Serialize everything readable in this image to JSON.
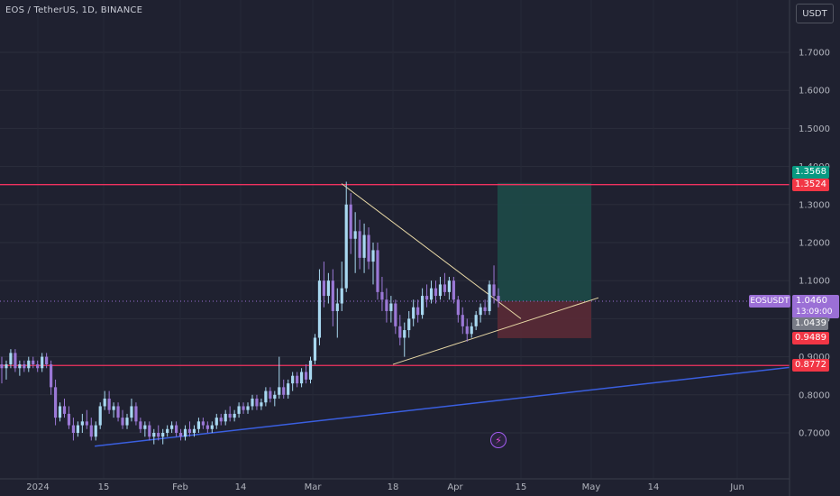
{
  "header": {
    "title": "EOS / TetherUS, 1D, BINANCE",
    "unit": "USDT"
  },
  "colors": {
    "background": "#1f2130",
    "bull": "#a8d8f0",
    "bear": "#9b78d6",
    "resistance": "#f0325f",
    "trend": "#3a5fe0",
    "triangle": "#e9d9a6",
    "profit_zone": "#1d4a48",
    "loss_zone": "#5a2a36",
    "tp_badge": "#089981",
    "sl_badge": "#f23645",
    "price_badge": "#9b6fd6"
  },
  "badges": {
    "tp": "1.3568",
    "resistance": "1.3524",
    "stop": "0.9489",
    "support": "0.8772",
    "symbol": "EOSUSDT",
    "price": "1.0460",
    "countdown": "13:09:00",
    "last": "1.0439"
  },
  "chart_data": {
    "type": "candlestick",
    "ylim": [
      0.62,
      1.84
    ],
    "y_ticks": [
      "0.7000",
      "0.8000",
      "0.9000",
      "1.0000",
      "1.1000",
      "1.2000",
      "1.3000",
      "1.4000",
      "1.5000",
      "1.6000",
      "1.7000"
    ],
    "x_ticks": [
      "2024",
      "15",
      "Feb",
      "14",
      "Mar",
      "18",
      "Apr",
      "15",
      "May",
      "14",
      "Jun"
    ],
    "levels": [
      {
        "price": 1.3524,
        "label": "1.3524"
      },
      {
        "price": 0.8772,
        "label": "0.8772"
      }
    ],
    "trendline": {
      "from": [
        0.12,
        0.665
      ],
      "to": [
        1.0,
        0.872
      ]
    },
    "triangle_upper": {
      "from": [
        0.38,
        1.355
      ],
      "to": [
        0.625,
        1.0
      ]
    },
    "triangle_lower": {
      "from": [
        0.47,
        0.88
      ],
      "to": [
        0.715,
        1.055
      ]
    },
    "position": {
      "entry": 1.046,
      "target": 1.3568,
      "stop": 0.9489
    },
    "candles": [
      [
        0.88,
        0.9,
        0.83,
        0.87
      ],
      [
        0.87,
        0.89,
        0.84,
        0.88
      ],
      [
        0.88,
        0.92,
        0.87,
        0.91
      ],
      [
        0.91,
        0.92,
        0.86,
        0.87
      ],
      [
        0.87,
        0.89,
        0.85,
        0.88
      ],
      [
        0.88,
        0.89,
        0.86,
        0.87
      ],
      [
        0.87,
        0.9,
        0.86,
        0.89
      ],
      [
        0.89,
        0.9,
        0.87,
        0.88
      ],
      [
        0.88,
        0.89,
        0.86,
        0.87
      ],
      [
        0.87,
        0.91,
        0.86,
        0.9
      ],
      [
        0.9,
        0.91,
        0.87,
        0.88
      ],
      [
        0.88,
        0.89,
        0.8,
        0.82
      ],
      [
        0.82,
        0.84,
        0.72,
        0.74
      ],
      [
        0.74,
        0.78,
        0.73,
        0.77
      ],
      [
        0.77,
        0.79,
        0.74,
        0.75
      ],
      [
        0.75,
        0.77,
        0.71,
        0.72
      ],
      [
        0.72,
        0.74,
        0.68,
        0.7
      ],
      [
        0.7,
        0.73,
        0.69,
        0.72
      ],
      [
        0.72,
        0.75,
        0.7,
        0.73
      ],
      [
        0.73,
        0.76,
        0.71,
        0.72
      ],
      [
        0.72,
        0.74,
        0.68,
        0.69
      ],
      [
        0.69,
        0.73,
        0.68,
        0.72
      ],
      [
        0.72,
        0.78,
        0.71,
        0.77
      ],
      [
        0.77,
        0.81,
        0.76,
        0.79
      ],
      [
        0.79,
        0.81,
        0.75,
        0.76
      ],
      [
        0.76,
        0.78,
        0.74,
        0.77
      ],
      [
        0.77,
        0.78,
        0.73,
        0.74
      ],
      [
        0.74,
        0.76,
        0.71,
        0.72
      ],
      [
        0.72,
        0.75,
        0.71,
        0.74
      ],
      [
        0.74,
        0.79,
        0.73,
        0.77
      ],
      [
        0.77,
        0.78,
        0.72,
        0.73
      ],
      [
        0.73,
        0.74,
        0.7,
        0.71
      ],
      [
        0.71,
        0.73,
        0.69,
        0.72
      ],
      [
        0.72,
        0.73,
        0.68,
        0.69
      ],
      [
        0.69,
        0.71,
        0.67,
        0.7
      ],
      [
        0.7,
        0.72,
        0.68,
        0.69
      ],
      [
        0.69,
        0.71,
        0.67,
        0.7
      ],
      [
        0.7,
        0.72,
        0.69,
        0.71
      ],
      [
        0.71,
        0.73,
        0.7,
        0.72
      ],
      [
        0.72,
        0.73,
        0.69,
        0.7
      ],
      [
        0.7,
        0.71,
        0.68,
        0.69
      ],
      [
        0.69,
        0.72,
        0.68,
        0.71
      ],
      [
        0.71,
        0.73,
        0.69,
        0.7
      ],
      [
        0.7,
        0.72,
        0.69,
        0.71
      ],
      [
        0.71,
        0.74,
        0.7,
        0.73
      ],
      [
        0.73,
        0.74,
        0.71,
        0.72
      ],
      [
        0.72,
        0.73,
        0.7,
        0.71
      ],
      [
        0.71,
        0.73,
        0.7,
        0.72
      ],
      [
        0.72,
        0.75,
        0.71,
        0.74
      ],
      [
        0.74,
        0.75,
        0.72,
        0.73
      ],
      [
        0.73,
        0.76,
        0.72,
        0.75
      ],
      [
        0.75,
        0.77,
        0.73,
        0.74
      ],
      [
        0.74,
        0.76,
        0.73,
        0.75
      ],
      [
        0.75,
        0.78,
        0.74,
        0.77
      ],
      [
        0.77,
        0.78,
        0.75,
        0.76
      ],
      [
        0.76,
        0.78,
        0.75,
        0.77
      ],
      [
        0.77,
        0.8,
        0.76,
        0.79
      ],
      [
        0.79,
        0.8,
        0.76,
        0.77
      ],
      [
        0.77,
        0.79,
        0.76,
        0.78
      ],
      [
        0.78,
        0.82,
        0.77,
        0.81
      ],
      [
        0.81,
        0.82,
        0.78,
        0.79
      ],
      [
        0.79,
        0.81,
        0.77,
        0.8
      ],
      [
        0.8,
        0.9,
        0.79,
        0.82
      ],
      [
        0.82,
        0.84,
        0.79,
        0.8
      ],
      [
        0.8,
        0.84,
        0.79,
        0.83
      ],
      [
        0.83,
        0.86,
        0.81,
        0.85
      ],
      [
        0.85,
        0.86,
        0.82,
        0.83
      ],
      [
        0.83,
        0.87,
        0.82,
        0.86
      ],
      [
        0.86,
        0.88,
        0.83,
        0.84
      ],
      [
        0.84,
        0.9,
        0.83,
        0.89
      ],
      [
        0.89,
        0.96,
        0.88,
        0.95
      ],
      [
        0.95,
        1.13,
        0.93,
        1.1
      ],
      [
        1.1,
        1.15,
        1.03,
        1.06
      ],
      [
        1.06,
        1.12,
        1.04,
        1.1
      ],
      [
        1.1,
        1.13,
        0.98,
        1.02
      ],
      [
        1.02,
        1.08,
        0.95,
        1.04
      ],
      [
        1.04,
        1.15,
        1.02,
        1.08
      ],
      [
        1.08,
        1.36,
        1.07,
        1.3
      ],
      [
        1.3,
        1.33,
        1.17,
        1.21
      ],
      [
        1.21,
        1.28,
        1.12,
        1.23
      ],
      [
        1.23,
        1.26,
        1.13,
        1.16
      ],
      [
        1.16,
        1.25,
        1.12,
        1.22
      ],
      [
        1.22,
        1.24,
        1.13,
        1.15
      ],
      [
        1.15,
        1.2,
        1.09,
        1.18
      ],
      [
        1.18,
        1.2,
        1.05,
        1.07
      ],
      [
        1.07,
        1.11,
        1.02,
        1.05
      ],
      [
        1.05,
        1.08,
        0.99,
        1.02
      ],
      [
        1.02,
        1.06,
        0.99,
        1.04
      ],
      [
        1.04,
        1.05,
        0.96,
        0.98
      ],
      [
        0.98,
        1.01,
        0.93,
        0.95
      ],
      [
        0.95,
        0.99,
        0.9,
        0.97
      ],
      [
        0.97,
        1.02,
        0.95,
        1.0
      ],
      [
        1.0,
        1.05,
        0.98,
        1.03
      ],
      [
        1.03,
        1.05,
        0.99,
        1.01
      ],
      [
        1.01,
        1.08,
        1.0,
        1.06
      ],
      [
        1.06,
        1.09,
        1.03,
        1.05
      ],
      [
        1.05,
        1.1,
        1.04,
        1.08
      ],
      [
        1.08,
        1.1,
        1.04,
        1.06
      ],
      [
        1.06,
        1.11,
        1.05,
        1.09
      ],
      [
        1.09,
        1.12,
        1.06,
        1.07
      ],
      [
        1.07,
        1.11,
        1.05,
        1.1
      ],
      [
        1.1,
        1.11,
        1.04,
        1.05
      ],
      [
        1.05,
        1.06,
        0.99,
        1.01
      ],
      [
        1.01,
        1.03,
        0.96,
        0.98
      ],
      [
        0.98,
        1.0,
        0.94,
        0.96
      ],
      [
        0.96,
        0.99,
        0.95,
        0.98
      ],
      [
        0.98,
        1.02,
        0.97,
        1.01
      ],
      [
        1.01,
        1.04,
        0.99,
        1.03
      ],
      [
        1.03,
        1.05,
        1.01,
        1.02
      ],
      [
        1.02,
        1.1,
        1.01,
        1.09
      ],
      [
        1.09,
        1.14,
        1.04,
        1.06
      ],
      [
        1.06,
        1.08,
        1.03,
        1.045
      ]
    ]
  }
}
